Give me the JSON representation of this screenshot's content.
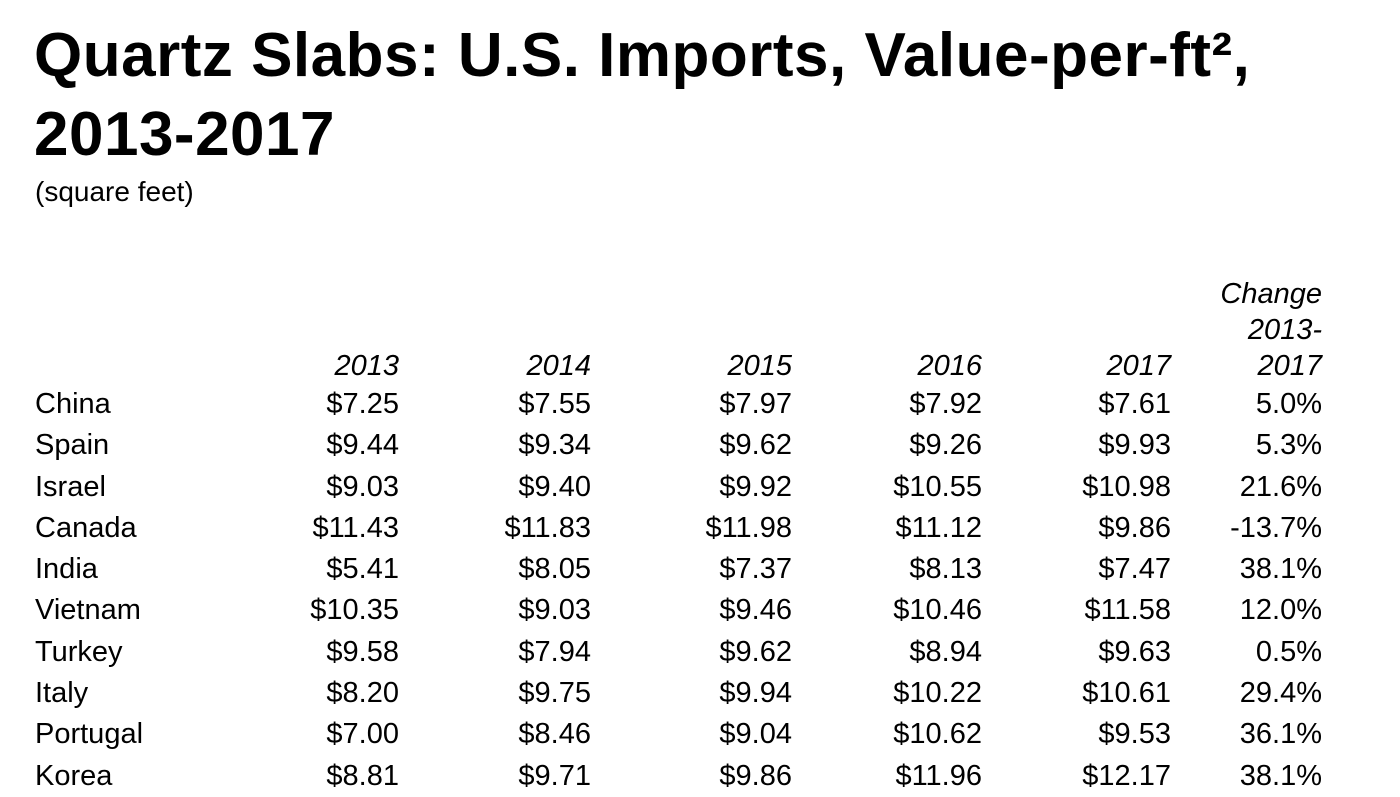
{
  "chart_data": {
    "type": "table",
    "title": "Quartz Slabs: U.S. Imports, Value-per-ft², 2013-2017",
    "subtitle": "(square feet)",
    "columns": [
      "2013",
      "2014",
      "2015",
      "2016",
      "2017"
    ],
    "change_header": [
      "Change",
      "2013-",
      "2017"
    ],
    "rows": [
      {
        "country": "China",
        "values": [
          "$7.25",
          "$7.55",
          "$7.97",
          "$7.92",
          "$7.61"
        ],
        "change": "5.0%"
      },
      {
        "country": "Spain",
        "values": [
          "$9.44",
          "$9.34",
          "$9.62",
          "$9.26",
          "$9.93"
        ],
        "change": "5.3%"
      },
      {
        "country": "Israel",
        "values": [
          "$9.03",
          "$9.40",
          "$9.92",
          "$10.55",
          "$10.98"
        ],
        "change": "21.6%"
      },
      {
        "country": "Canada",
        "values": [
          "$11.43",
          "$11.83",
          "$11.98",
          "$11.12",
          "$9.86"
        ],
        "change": "-13.7%"
      },
      {
        "country": "India",
        "values": [
          "$5.41",
          "$8.05",
          "$7.37",
          "$8.13",
          "$7.47"
        ],
        "change": "38.1%"
      },
      {
        "country": "Vietnam",
        "values": [
          "$10.35",
          "$9.03",
          "$9.46",
          "$10.46",
          "$11.58"
        ],
        "change": "12.0%"
      },
      {
        "country": "Turkey",
        "values": [
          "$9.58",
          "$7.94",
          "$9.62",
          "$8.94",
          "$9.63"
        ],
        "change": "0.5%"
      },
      {
        "country": "Italy",
        "values": [
          "$8.20",
          "$9.75",
          "$9.94",
          "$10.22",
          "$10.61"
        ],
        "change": "29.4%"
      },
      {
        "country": "Portugal",
        "values": [
          "$7.00",
          "$8.46",
          "$9.04",
          "$10.62",
          "$9.53"
        ],
        "change": "36.1%"
      },
      {
        "country": "Korea",
        "values": [
          "$8.81",
          "$9.71",
          "$9.86",
          "$11.96",
          "$12.17"
        ],
        "change": "38.1%"
      }
    ]
  }
}
